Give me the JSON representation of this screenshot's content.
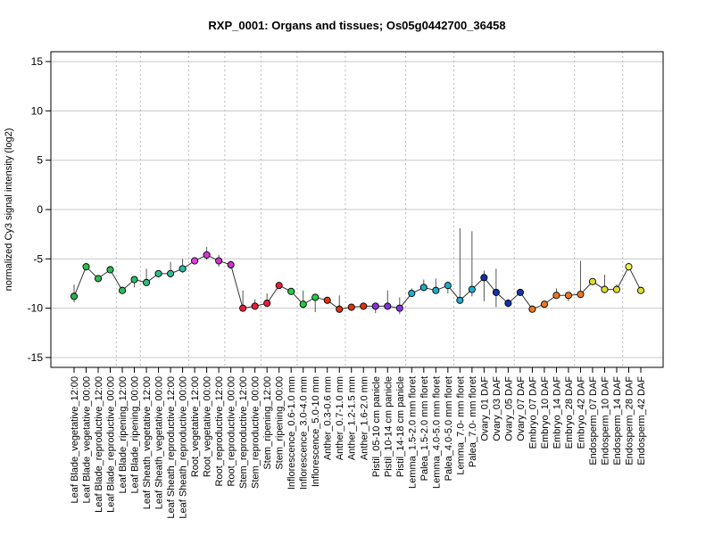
{
  "chart_data": {
    "type": "line",
    "title": "RXP_0001: Organs and tissues; Os05g0442700_36458",
    "ylabel": "normalized Cy3 signal intensity (log2)",
    "xlabel": "",
    "ylim": [
      -16,
      16
    ],
    "yticks": [
      15,
      10,
      5,
      0,
      -5,
      -10,
      -15
    ],
    "grid": "horizontal at y ticks; dotted vertical separators between tissue groups",
    "group_separators_after_index": [
      3,
      5,
      9,
      12,
      15,
      18,
      22,
      27,
      31,
      36,
      41,
      45
    ],
    "points": [
      {
        "label": "Leaf Blade_vegetative_12:00",
        "y": -8.8,
        "err_low": -9.4,
        "err_high": -7.6,
        "color": "#2bb24c"
      },
      {
        "label": "Leaf Blade_vegetative_00:00",
        "y": -5.8,
        "err_low": -6.2,
        "err_high": -5.4,
        "color": "#2fbb4f"
      },
      {
        "label": "Leaf Blade_reproductive_12:00",
        "y": -7.0,
        "err_low": -7.3,
        "err_high": -6.7,
        "color": "#2fbb4f"
      },
      {
        "label": "Leaf Blade_reproductive_00:00",
        "y": -6.1,
        "err_low": -6.4,
        "err_high": -5.8,
        "color": "#2fbb4f"
      },
      {
        "label": "Leaf Blade_ripening_12:00",
        "y": -8.2,
        "err_low": -8.5,
        "err_high": -7.9,
        "color": "#2fbb5a"
      },
      {
        "label": "Leaf Blade_ripening_00:00",
        "y": -7.1,
        "err_low": -7.9,
        "err_high": -6.8,
        "color": "#2fbb65"
      },
      {
        "label": "Leaf Sheath_vegetative_12:00",
        "y": -7.4,
        "err_low": -7.7,
        "err_high": -6.0,
        "color": "#2fbb7a"
      },
      {
        "label": "Leaf Sheath_vegetative_00:00",
        "y": -6.5,
        "err_low": -6.8,
        "err_high": -6.2,
        "color": "#2fbb8a"
      },
      {
        "label": "Leaf Sheath_reproductive_12:00",
        "y": -6.5,
        "err_low": -6.9,
        "err_high": -5.3,
        "color": "#2fbb99"
      },
      {
        "label": "Leaf Sheath_reproductive_00:00",
        "y": -6.0,
        "err_low": -6.4,
        "err_high": -5.0,
        "color": "#2fbba6"
      },
      {
        "label": "Root_vegetative_12:00",
        "y": -5.2,
        "err_low": -5.5,
        "err_high": -4.9,
        "color": "#e040e0"
      },
      {
        "label": "Root_vegetative_00:00",
        "y": -4.6,
        "err_low": -5.1,
        "err_high": -3.8,
        "color": "#d838d8"
      },
      {
        "label": "Root_reproductive_12:00",
        "y": -5.2,
        "err_low": -5.8,
        "err_high": -4.6,
        "color": "#cc33cc"
      },
      {
        "label": "Root_reproductive_00:00",
        "y": -5.6,
        "err_low": -6.0,
        "err_high": -5.2,
        "color": "#cc33cc"
      },
      {
        "label": "Stem_reproductive_12:00",
        "y": -10.0,
        "err_low": -10.2,
        "err_high": -8.2,
        "color": "#e8203a"
      },
      {
        "label": "Stem_reproductive_00:00",
        "y": -9.8,
        "err_low": -10.0,
        "err_high": -9.1,
        "color": "#e8203a"
      },
      {
        "label": "Stem_ripening_12:00",
        "y": -9.5,
        "err_low": -9.9,
        "err_high": -8.5,
        "color": "#e8203a"
      },
      {
        "label": "Stem_ripening_00:00",
        "y": -7.7,
        "err_low": -7.9,
        "err_high": -7.4,
        "color": "#e8203a"
      },
      {
        "label": "Inflorescence_0.6-1.0 mm",
        "y": -8.3,
        "err_low": -8.6,
        "err_high": -8.0,
        "color": "#22cc44"
      },
      {
        "label": "Inflorescence_3.0-4.0 mm",
        "y": -9.6,
        "err_low": -10.0,
        "err_high": -8.2,
        "color": "#22cc44"
      },
      {
        "label": "Inflorescence_5.0-10 mm",
        "y": -8.9,
        "err_low": -10.4,
        "err_high": -8.6,
        "color": "#22cc44"
      },
      {
        "label": "Anther_0.3-0.6 mm",
        "y": -9.2,
        "err_low": -9.5,
        "err_high": -8.9,
        "color": "#dd3311"
      },
      {
        "label": "Anther_0.7-1.0 mm",
        "y": -10.1,
        "err_low": -10.5,
        "err_high": -8.7,
        "color": "#dd3311"
      },
      {
        "label": "Anther_1.2-1.5 mm",
        "y": -9.9,
        "err_low": -10.1,
        "err_high": -9.7,
        "color": "#dd3311"
      },
      {
        "label": "Anther_1.6-2.0 mm",
        "y": -9.8,
        "err_low": -10.0,
        "err_high": -9.6,
        "color": "#dd3311"
      },
      {
        "label": "Pistil_05-10 cm panicle",
        "y": -9.8,
        "err_low": -10.5,
        "err_high": -9.5,
        "color": "#8833dd"
      },
      {
        "label": "Pistil_10-14 cm panicle",
        "y": -9.8,
        "err_low": -10.1,
        "err_high": -8.2,
        "color": "#8833dd"
      },
      {
        "label": "Pistil_14-18 cm panicle",
        "y": -10.0,
        "err_low": -10.6,
        "err_high": -8.9,
        "color": "#8833dd"
      },
      {
        "label": "Lemma_1.5-2.0 mm floret",
        "y": -8.5,
        "err_low": -8.8,
        "err_high": -8.0,
        "color": "#22aacc"
      },
      {
        "label": "Palea_1.5-2.0 mm floret",
        "y": -7.9,
        "err_low": -8.2,
        "err_high": -7.1,
        "color": "#22aacc"
      },
      {
        "label": "Lemma_4.0-5.0 mm floret",
        "y": -8.2,
        "err_low": -8.5,
        "err_high": -7.0,
        "color": "#22aacc"
      },
      {
        "label": "Palea_4.0-5.0 mm floret",
        "y": -7.7,
        "err_low": -8.5,
        "err_high": -7.3,
        "color": "#22aacc"
      },
      {
        "label": "Lemma_7.0- mm floret",
        "y": -9.2,
        "err_low": -9.5,
        "err_high": -1.9,
        "color": "#22aacc"
      },
      {
        "label": "Palea_7.0- mm floret",
        "y": -8.1,
        "err_low": -8.8,
        "err_high": -2.2,
        "color": "#22aacc"
      },
      {
        "label": "Ovary_01 DAF",
        "y": -6.9,
        "err_low": -9.3,
        "err_high": -6.2,
        "color": "#1133aa"
      },
      {
        "label": "Ovary_03 DAF",
        "y": -8.4,
        "err_low": -9.9,
        "err_high": -6.0,
        "color": "#1133aa"
      },
      {
        "label": "Ovary_05 DAF",
        "y": -9.5,
        "err_low": -9.9,
        "err_high": -9.1,
        "color": "#1133aa"
      },
      {
        "label": "Ovary_07 DAF",
        "y": -8.4,
        "err_low": -8.7,
        "err_high": -8.2,
        "color": "#1133aa"
      },
      {
        "label": "Embryo_07 DAF",
        "y": -10.1,
        "err_low": -10.3,
        "err_high": -9.9,
        "color": "#ee7722"
      },
      {
        "label": "Embryo_10 DAF",
        "y": -9.6,
        "err_low": -9.9,
        "err_high": -9.4,
        "color": "#ee7722"
      },
      {
        "label": "Embryo_14 DAF",
        "y": -8.7,
        "err_low": -9.0,
        "err_high": -8.0,
        "color": "#ee7722"
      },
      {
        "label": "Embryo_28 DAF",
        "y": -8.7,
        "err_low": -9.3,
        "err_high": -8.4,
        "color": "#ee7722"
      },
      {
        "label": "Embryo_42 DAF",
        "y": -8.6,
        "err_low": -8.9,
        "err_high": -5.2,
        "color": "#ee7722"
      },
      {
        "label": "Endosperm_07 DAF",
        "y": -7.3,
        "err_low": -7.6,
        "err_high": -7.0,
        "color": "#dddd33"
      },
      {
        "label": "Endosperm_10 DAF",
        "y": -8.1,
        "err_low": -8.5,
        "err_high": -6.6,
        "color": "#dddd33"
      },
      {
        "label": "Endosperm_14 DAF",
        "y": -8.1,
        "err_low": -8.4,
        "err_high": -7.6,
        "color": "#dddd33"
      },
      {
        "label": "Endosperm_28 DAF",
        "y": -5.8,
        "err_low": -6.2,
        "err_high": -5.4,
        "color": "#eeee55"
      },
      {
        "label": "Endosperm_42 DAF",
        "y": -8.2,
        "err_low": -8.5,
        "err_high": -7.9,
        "color": "#dddd33"
      }
    ]
  }
}
